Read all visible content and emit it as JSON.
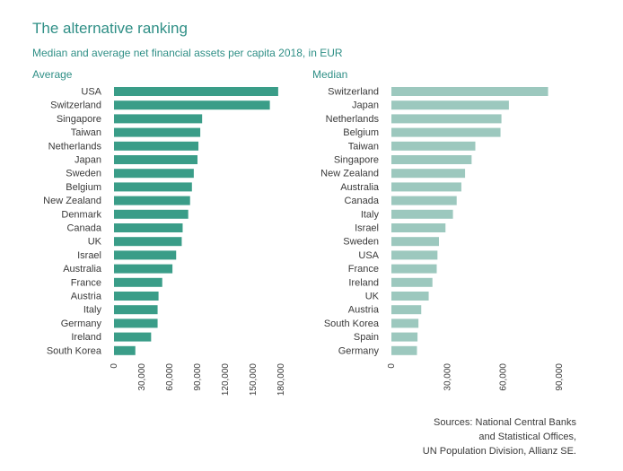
{
  "title": "The alternative ranking",
  "subtitle": "Median and average net financial assets per capita 2018, in EUR",
  "source": [
    "Sources: National Central Banks",
    "and Statistical Offices,",
    "UN Population Division, Allianz SE."
  ],
  "colors": {
    "average": "#3a9d88",
    "median": "#9cc8be",
    "text": "#2f8f86"
  },
  "chart_data": [
    {
      "type": "bar",
      "orientation": "horizontal",
      "title": "Average",
      "categories": [
        "USA",
        "Switzerland",
        "Singapore",
        "Taiwan",
        "Netherlands",
        "Japan",
        "Sweden",
        "Belgium",
        "New Zealand",
        "Denmark",
        "Canada",
        "UK",
        "Israel",
        "Australia",
        "France",
        "Austria",
        "Italy",
        "Germany",
        "Ireland",
        "South Korea"
      ],
      "values": [
        177000,
        168000,
        95000,
        93000,
        91000,
        90000,
        86000,
        84000,
        82000,
        80000,
        74000,
        73000,
        67000,
        63000,
        52000,
        48000,
        47000,
        47000,
        40000,
        23000
      ],
      "xlim": [
        0,
        180000
      ],
      "xticks": [
        "0",
        "30,000",
        "60,000",
        "90,000",
        "120,000",
        "150,000",
        "180,000"
      ],
      "grid": false
    },
    {
      "type": "bar",
      "orientation": "horizontal",
      "title": "Median",
      "categories": [
        "Switzerland",
        "Japan",
        "Netherlands",
        "Belgium",
        "Taiwan",
        "Singapore",
        "New Zealand",
        "Australia",
        "Canada",
        "Italy",
        "Israel",
        "Sweden",
        "USA",
        "France",
        "Ireland",
        "UK",
        "Austria",
        "South Korea",
        "Spain",
        "Germany"
      ],
      "values": [
        84000,
        63000,
        59000,
        58500,
        45000,
        43000,
        39500,
        37500,
        35000,
        33000,
        29000,
        25500,
        24700,
        24300,
        22000,
        20000,
        16000,
        14500,
        14000,
        13700
      ],
      "xlim": [
        0,
        90000
      ],
      "xticks": [
        "0",
        "30,000",
        "60,000",
        "90,000"
      ],
      "grid": false
    }
  ]
}
